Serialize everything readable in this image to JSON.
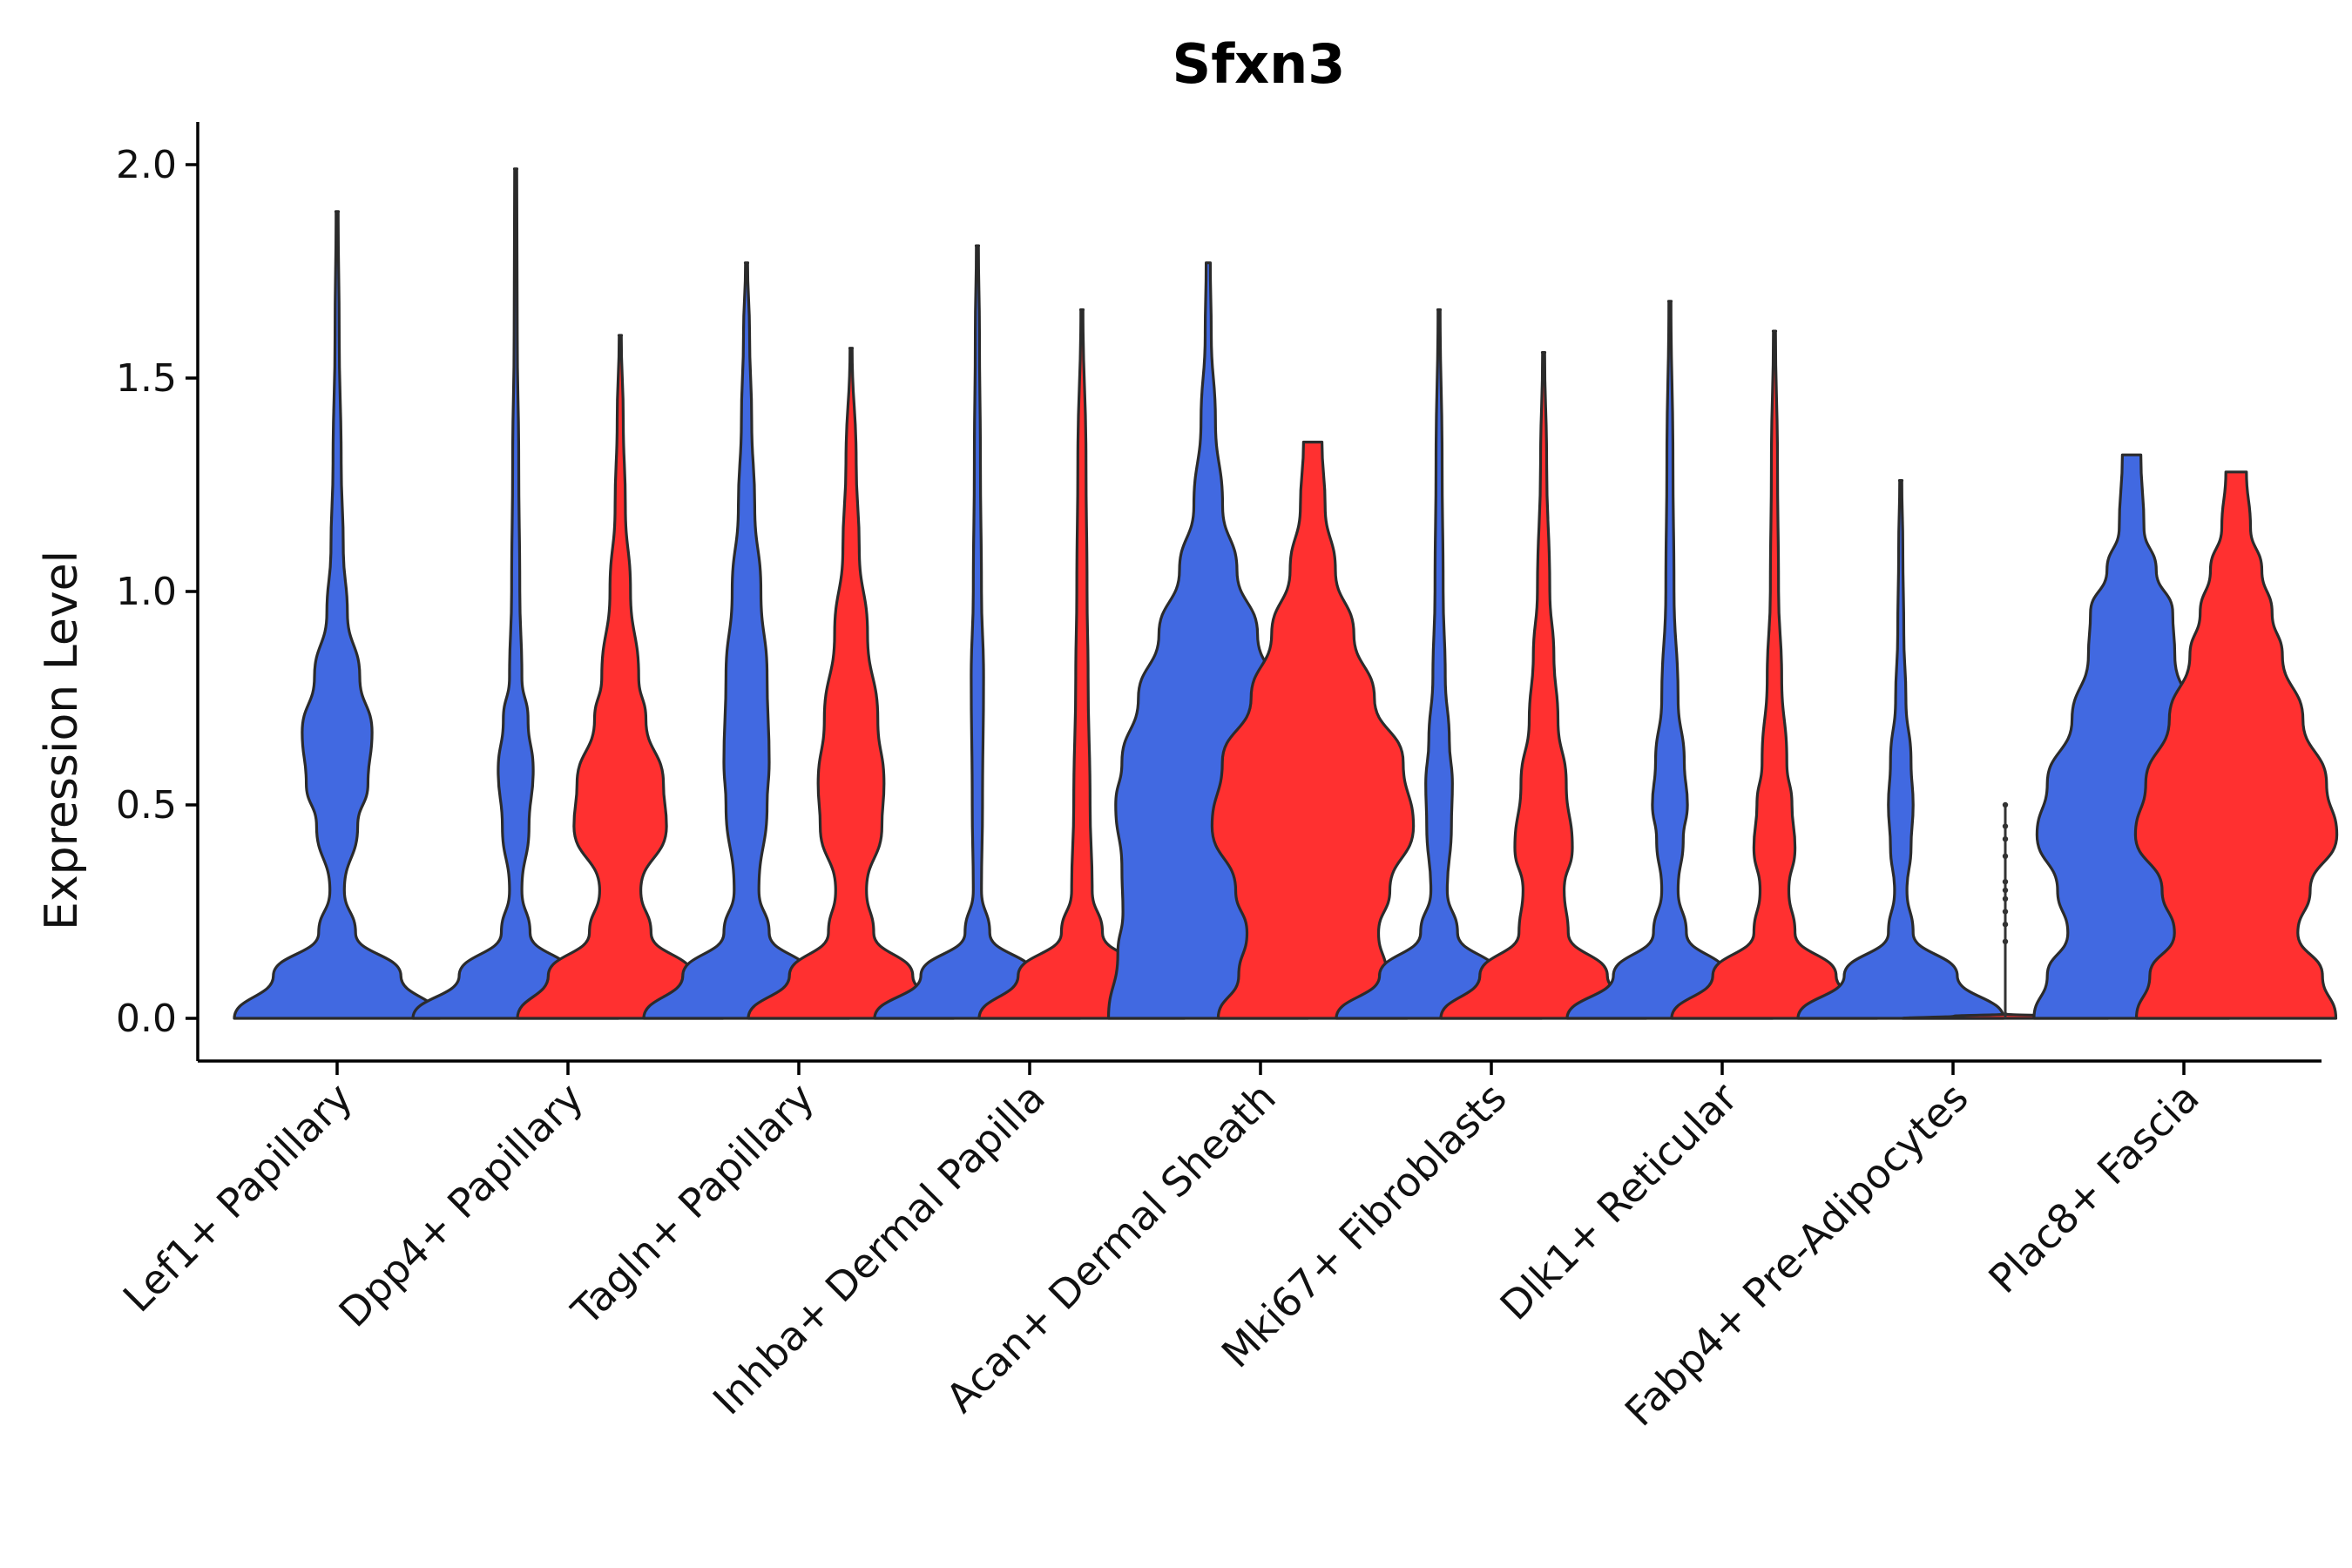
{
  "chart_data": {
    "type": "violin",
    "title": "Sfxn3",
    "xlabel": "",
    "ylabel": "Expression Level",
    "ylim": [
      -0.1,
      2.1
    ],
    "yticks": [
      0.0,
      0.5,
      1.0,
      1.5,
      2.0
    ],
    "ytick_labels": [
      "0.0",
      "0.5",
      "1.0",
      "1.5",
      "2.0"
    ],
    "colors": {
      "group_a": "#4169E1",
      "group_b": "#FF3030"
    },
    "categories": [
      "Lef1+ Papillary",
      "Dpp4+ Papillary",
      "Tagln+ Papillary",
      "Inhba+ Dermal Papilla",
      "Acan+ Dermal Sheath",
      "Mki67+ Fibroblasts",
      "Dlk1+ Reticular",
      "Fabp4+ Pre-Adipocytes",
      "Plac8+ Fascia"
    ],
    "violins": [
      {
        "category": 0,
        "group": "group_a",
        "max": 1.89,
        "profile": [
          [
            0,
            1.0
          ],
          [
            0.1,
            0.62
          ],
          [
            0.2,
            0.18
          ],
          [
            0.3,
            0.07
          ],
          [
            0.45,
            0.2
          ],
          [
            0.55,
            0.3
          ],
          [
            0.67,
            0.34
          ],
          [
            0.8,
            0.22
          ],
          [
            0.95,
            0.1
          ],
          [
            1.1,
            0.06
          ],
          [
            1.3,
            0.04
          ],
          [
            1.6,
            0.02
          ],
          [
            1.89,
            0.01
          ]
        ]
      },
      {
        "category": 1,
        "group": "group_a",
        "max": 1.99,
        "profile": [
          [
            0,
            1.0
          ],
          [
            0.1,
            0.55
          ],
          [
            0.2,
            0.14
          ],
          [
            0.3,
            0.06
          ],
          [
            0.45,
            0.13
          ],
          [
            0.58,
            0.17
          ],
          [
            0.7,
            0.12
          ],
          [
            0.8,
            0.06
          ],
          [
            1.0,
            0.04
          ],
          [
            1.3,
            0.03
          ],
          [
            1.6,
            0.015
          ],
          [
            1.99,
            0.01
          ]
        ]
      },
      {
        "category": 1,
        "group": "group_b",
        "max": 1.6,
        "profile": [
          [
            0,
            1.0
          ],
          [
            0.1,
            0.7
          ],
          [
            0.2,
            0.3
          ],
          [
            0.3,
            0.2
          ],
          [
            0.45,
            0.45
          ],
          [
            0.55,
            0.42
          ],
          [
            0.7,
            0.25
          ],
          [
            0.8,
            0.18
          ],
          [
            1.0,
            0.1
          ],
          [
            1.2,
            0.05
          ],
          [
            1.4,
            0.03
          ],
          [
            1.6,
            0.01
          ]
        ]
      },
      {
        "category": 2,
        "group": "group_a",
        "max": 1.77,
        "profile": [
          [
            0,
            1.0
          ],
          [
            0.1,
            0.62
          ],
          [
            0.2,
            0.22
          ],
          [
            0.3,
            0.12
          ],
          [
            0.5,
            0.2
          ],
          [
            0.6,
            0.22
          ],
          [
            0.8,
            0.2
          ],
          [
            1.0,
            0.14
          ],
          [
            1.2,
            0.08
          ],
          [
            1.4,
            0.05
          ],
          [
            1.6,
            0.03
          ],
          [
            1.77,
            0.01
          ]
        ]
      },
      {
        "category": 2,
        "group": "group_b",
        "max": 1.57,
        "profile": [
          [
            0,
            1.0
          ],
          [
            0.1,
            0.6
          ],
          [
            0.2,
            0.22
          ],
          [
            0.3,
            0.15
          ],
          [
            0.45,
            0.3
          ],
          [
            0.55,
            0.32
          ],
          [
            0.7,
            0.26
          ],
          [
            0.9,
            0.16
          ],
          [
            1.1,
            0.08
          ],
          [
            1.3,
            0.05
          ],
          [
            1.57,
            0.01
          ]
        ]
      },
      {
        "category": 3,
        "group": "group_a",
        "max": 1.81,
        "profile": [
          [
            0,
            1.0
          ],
          [
            0.1,
            0.55
          ],
          [
            0.2,
            0.12
          ],
          [
            0.3,
            0.04
          ],
          [
            0.5,
            0.05
          ],
          [
            0.8,
            0.06
          ],
          [
            1.0,
            0.04
          ],
          [
            1.3,
            0.03
          ],
          [
            1.6,
            0.02
          ],
          [
            1.81,
            0.01
          ]
        ]
      },
      {
        "category": 3,
        "group": "group_b",
        "max": 1.66,
        "profile": [
          [
            0,
            1.0
          ],
          [
            0.1,
            0.62
          ],
          [
            0.2,
            0.2
          ],
          [
            0.3,
            0.1
          ],
          [
            0.5,
            0.08
          ],
          [
            0.8,
            0.06
          ],
          [
            1.0,
            0.05
          ],
          [
            1.3,
            0.04
          ],
          [
            1.66,
            0.01
          ]
        ]
      },
      {
        "category": 4,
        "group": "group_a",
        "max": 1.77,
        "profile": [
          [
            0,
            0.97
          ],
          [
            0.15,
            0.88
          ],
          [
            0.25,
            0.83
          ],
          [
            0.35,
            0.84
          ],
          [
            0.5,
            0.9
          ],
          [
            0.6,
            0.84
          ],
          [
            0.75,
            0.68
          ],
          [
            0.9,
            0.48
          ],
          [
            1.05,
            0.28
          ],
          [
            1.2,
            0.14
          ],
          [
            1.4,
            0.07
          ],
          [
            1.6,
            0.03
          ],
          [
            1.77,
            0.02
          ]
        ]
      },
      {
        "category": 4,
        "group": "group_b",
        "max": 1.35,
        "profile": [
          [
            0,
            0.92
          ],
          [
            0.1,
            0.72
          ],
          [
            0.2,
            0.64
          ],
          [
            0.3,
            0.75
          ],
          [
            0.45,
            0.98
          ],
          [
            0.6,
            0.88
          ],
          [
            0.75,
            0.6
          ],
          [
            0.9,
            0.4
          ],
          [
            1.05,
            0.22
          ],
          [
            1.2,
            0.12
          ],
          [
            1.35,
            0.09
          ]
        ]
      },
      {
        "category": 5,
        "group": "group_a",
        "max": 1.66,
        "profile": [
          [
            0,
            1.0
          ],
          [
            0.1,
            0.58
          ],
          [
            0.2,
            0.18
          ],
          [
            0.3,
            0.08
          ],
          [
            0.45,
            0.12
          ],
          [
            0.55,
            0.13
          ],
          [
            0.65,
            0.1
          ],
          [
            0.8,
            0.06
          ],
          [
            1.0,
            0.04
          ],
          [
            1.3,
            0.03
          ],
          [
            1.66,
            0.01
          ]
        ]
      },
      {
        "category": 5,
        "group": "group_b",
        "max": 1.56,
        "profile": [
          [
            0,
            1.0
          ],
          [
            0.1,
            0.62
          ],
          [
            0.2,
            0.24
          ],
          [
            0.3,
            0.2
          ],
          [
            0.4,
            0.28
          ],
          [
            0.55,
            0.22
          ],
          [
            0.7,
            0.14
          ],
          [
            0.85,
            0.1
          ],
          [
            1.0,
            0.06
          ],
          [
            1.3,
            0.03
          ],
          [
            1.56,
            0.01
          ]
        ]
      },
      {
        "category": 6,
        "group": "group_a",
        "max": 1.68,
        "profile": [
          [
            0,
            1.0
          ],
          [
            0.1,
            0.55
          ],
          [
            0.2,
            0.16
          ],
          [
            0.3,
            0.08
          ],
          [
            0.42,
            0.13
          ],
          [
            0.5,
            0.17
          ],
          [
            0.6,
            0.14
          ],
          [
            0.75,
            0.08
          ],
          [
            1.0,
            0.04
          ],
          [
            1.3,
            0.03
          ],
          [
            1.68,
            0.01
          ]
        ]
      },
      {
        "category": 6,
        "group": "group_b",
        "max": 1.61,
        "profile": [
          [
            0,
            1.0
          ],
          [
            0.1,
            0.6
          ],
          [
            0.2,
            0.2
          ],
          [
            0.3,
            0.14
          ],
          [
            0.4,
            0.2
          ],
          [
            0.5,
            0.17
          ],
          [
            0.6,
            0.12
          ],
          [
            0.8,
            0.07
          ],
          [
            1.0,
            0.04
          ],
          [
            1.3,
            0.03
          ],
          [
            1.61,
            0.01
          ]
        ]
      },
      {
        "category": 7,
        "group": "group_a",
        "max": 1.26,
        "profile": [
          [
            0,
            1.0
          ],
          [
            0.1,
            0.55
          ],
          [
            0.2,
            0.12
          ],
          [
            0.3,
            0.06
          ],
          [
            0.4,
            0.1
          ],
          [
            0.5,
            0.12
          ],
          [
            0.6,
            0.1
          ],
          [
            0.75,
            0.05
          ],
          [
            0.9,
            0.03
          ],
          [
            1.1,
            0.02
          ],
          [
            1.26,
            0.01
          ]
        ]
      },
      {
        "category": 7,
        "group": "group_b",
        "max": 0.01,
        "profile": [
          [
            0,
            1.0
          ],
          [
            0.005,
            0.5
          ],
          [
            0.01,
            0.0
          ]
        ],
        "points": [
          0.18,
          0.22,
          0.25,
          0.28,
          0.3,
          0.32,
          0.38,
          0.42,
          0.45,
          0.5
        ]
      },
      {
        "category": 8,
        "group": "group_a",
        "max": 1.32,
        "profile": [
          [
            0,
            0.95
          ],
          [
            0.1,
            0.82
          ],
          [
            0.2,
            0.62
          ],
          [
            0.3,
            0.72
          ],
          [
            0.43,
            0.92
          ],
          [
            0.55,
            0.82
          ],
          [
            0.7,
            0.58
          ],
          [
            0.85,
            0.42
          ],
          [
            0.95,
            0.4
          ],
          [
            1.05,
            0.24
          ],
          [
            1.15,
            0.12
          ],
          [
            1.32,
            0.09
          ]
        ]
      },
      {
        "category": 8,
        "group": "group_b",
        "max": 1.28,
        "profile": [
          [
            0,
            0.97
          ],
          [
            0.1,
            0.84
          ],
          [
            0.2,
            0.6
          ],
          [
            0.3,
            0.72
          ],
          [
            0.43,
            0.98
          ],
          [
            0.55,
            0.88
          ],
          [
            0.7,
            0.65
          ],
          [
            0.85,
            0.45
          ],
          [
            0.95,
            0.35
          ],
          [
            1.05,
            0.25
          ],
          [
            1.15,
            0.14
          ],
          [
            1.28,
            0.1
          ]
        ]
      }
    ]
  }
}
